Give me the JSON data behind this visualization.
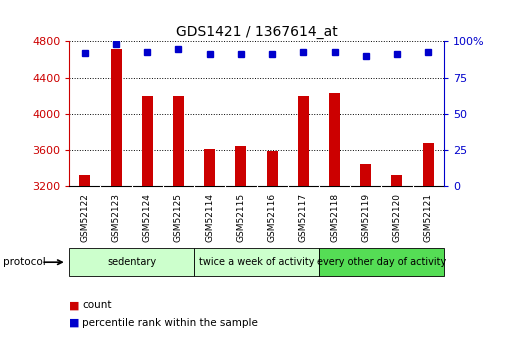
{
  "title": "GDS1421 / 1367614_at",
  "samples": [
    "GSM52122",
    "GSM52123",
    "GSM52124",
    "GSM52125",
    "GSM52114",
    "GSM52115",
    "GSM52116",
    "GSM52117",
    "GSM52118",
    "GSM52119",
    "GSM52120",
    "GSM52121"
  ],
  "counts": [
    3320,
    4720,
    4200,
    4200,
    3610,
    3640,
    3590,
    4200,
    4230,
    3450,
    3330,
    3680
  ],
  "percentiles": [
    92,
    98,
    93,
    95,
    91,
    91,
    91,
    93,
    93,
    90,
    91,
    93
  ],
  "ymin": 3200,
  "ymax": 4800,
  "yticks_left": [
    3200,
    3600,
    4000,
    4400,
    4800
  ],
  "yticks_right": [
    0,
    25,
    50,
    75,
    100
  ],
  "bar_color": "#cc0000",
  "dot_color": "#0000cc",
  "groups": [
    {
      "label": "sedentary",
      "start": 0,
      "end": 4,
      "color": "#ccffcc"
    },
    {
      "label": "twice a week of activity",
      "start": 4,
      "end": 8,
      "color": "#ccffcc"
    },
    {
      "label": "every other day of activity",
      "start": 8,
      "end": 12,
      "color": "#55dd55"
    }
  ],
  "protocol_label": "protocol",
  "legend_count": "count",
  "legend_percentile": "percentile rank within the sample",
  "bg_color": "#ffffff",
  "tick_bg_color": "#cccccc",
  "bar_width": 0.35
}
